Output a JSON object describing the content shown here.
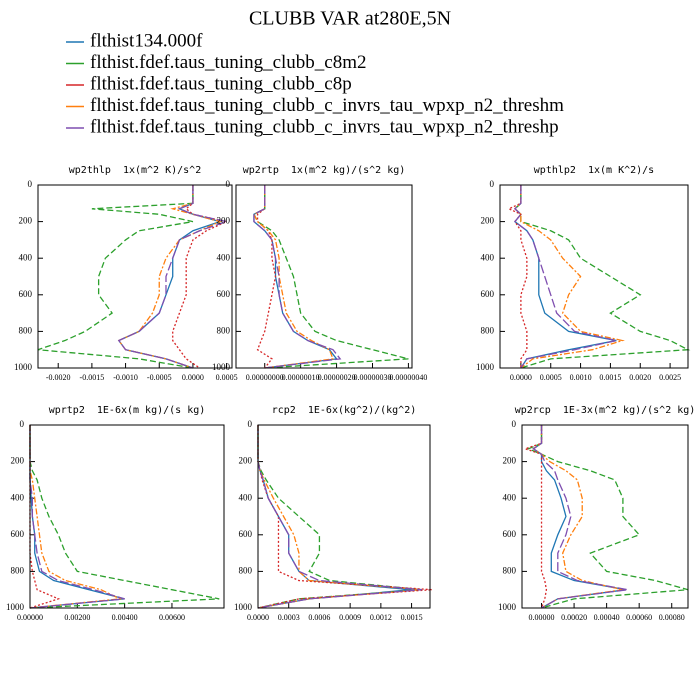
{
  "title": "CLUBB VAR at280E,5N",
  "legend": [
    {
      "name": "flthist134.000f",
      "color": "#1f77b4",
      "dash": "solid"
    },
    {
      "name": "flthist.fdef.taus_tuning_clubb_c8m2",
      "color": "#2ca02c",
      "dash": "dashed"
    },
    {
      "name": "flthist.fdef.taus_tuning_clubb_c8p",
      "color": "#d62728",
      "dash": "dotted"
    },
    {
      "name": "flthist.fdef.taus_tuning_clubb_c_invrs_tau_wpxp_n2_threshm",
      "color": "#ff7f0e",
      "dash": "dashdot"
    },
    {
      "name": "flthist.fdef.taus_tuning_clubb_c_invrs_tau_wpxp_n2_threshp",
      "color": "#7f4fb0",
      "dash": "longdash"
    }
  ],
  "chart_data": [
    {
      "type": "line",
      "title": "wp2thlp  1x(m^2 K)/s^2",
      "y": [
        0,
        100,
        130,
        160,
        200,
        250,
        300,
        400,
        500,
        600,
        700,
        800,
        850,
        900,
        950,
        1000
      ],
      "ylim": [
        1000,
        0
      ],
      "yticks": [
        0,
        200,
        400,
        600,
        800,
        1000
      ],
      "xlim": [
        -0.0023,
        0.00058
      ],
      "xticks": [
        {
          "value": -0.002,
          "label": "-0.0020"
        },
        {
          "value": -0.0015,
          "label": "-0.0015"
        },
        {
          "value": -0.001,
          "label": "-0.0010"
        },
        {
          "value": -0.0005,
          "label": "-0.0005"
        },
        {
          "value": 0,
          "label": "0.0000"
        },
        {
          "value": 0.0005,
          "label": "0.0005"
        }
      ],
      "series": [
        {
          "values": [
            0,
            0,
            -0.0002,
            0,
            0.0004,
            0,
            -0.0002,
            -0.0003,
            -0.0003,
            -0.0004,
            -0.0005,
            -0.0008,
            -0.0011,
            -0.001,
            -0.0004,
            0
          ]
        },
        {
          "values": [
            0,
            0,
            -0.0015,
            -0.0005,
            0,
            -0.0008,
            -0.001,
            -0.0013,
            -0.0014,
            -0.0014,
            -0.0012,
            -0.0016,
            -0.0019,
            -0.0023,
            -0.0008,
            0
          ]
        },
        {
          "values": [
            0,
            0,
            -0.0001,
            0,
            0.0005,
            0.0002,
            0,
            -0.0001,
            -0.0001,
            -0.0001,
            -0.0002,
            -0.0003,
            -0.0003,
            -0.0002,
            -0.0001,
            0.0001
          ]
        },
        {
          "values": [
            0,
            0,
            -0.0003,
            0,
            0.0004,
            0.0001,
            -0.0002,
            -0.0004,
            -0.0005,
            -0.0005,
            -0.0006,
            -0.0008,
            -0.0011,
            -0.001,
            -0.0004,
            0
          ]
        },
        {
          "values": [
            0,
            0,
            -0.0002,
            0,
            0.0005,
            0.0001,
            -0.0002,
            -0.0003,
            -0.0004,
            -0.0004,
            -0.0005,
            -0.0008,
            -0.0011,
            -0.001,
            -0.0004,
            0
          ]
        }
      ]
    },
    {
      "type": "line",
      "title": "wp2rtp  1x(m^2 kg)/(s^2 kg)",
      "y": [
        0,
        100,
        130,
        160,
        200,
        250,
        300,
        400,
        500,
        600,
        700,
        800,
        850,
        900,
        950,
        1000
      ],
      "ylim": [
        1000,
        0
      ],
      "yticks": [
        0,
        200,
        400,
        600,
        800,
        1000
      ],
      "xlim": [
        -8e-08,
        4.1e-07
      ],
      "xticks": [
        {
          "value": 0,
          "label": "0.00000000"
        },
        {
          "value": 1e-07,
          "label": "0.00000010"
        },
        {
          "value": 2e-07,
          "label": "0.00000020"
        },
        {
          "value": 3e-07,
          "label": "0.00000030"
        },
        {
          "value": 4e-07,
          "label": "0.00000040"
        }
      ],
      "series": [
        {
          "values": [
            0,
            0,
            0,
            -3e-08,
            -3e-08,
            0,
            2e-08,
            3e-08,
            3e-08,
            4e-08,
            5e-08,
            8e-08,
            1.2e-07,
            1.8e-07,
            2e-07,
            0
          ]
        },
        {
          "values": [
            0,
            0,
            0,
            -3e-08,
            -2e-08,
            2e-08,
            4e-08,
            6e-08,
            8e-08,
            9e-08,
            1e-07,
            1.4e-07,
            2e-07,
            3e-07,
            4e-07,
            0
          ]
        },
        {
          "values": [
            0,
            0,
            0,
            -2e-08,
            -2e-08,
            1e-08,
            2e-08,
            2e-08,
            3e-08,
            2e-08,
            1e-08,
            0,
            -1e-08,
            -2e-08,
            2e-08,
            0
          ]
        },
        {
          "values": [
            0,
            0,
            0,
            -3e-08,
            -2e-08,
            1e-08,
            3e-08,
            4e-08,
            4e-08,
            5e-08,
            6e-08,
            9e-08,
            1.3e-07,
            1.8e-07,
            1.9e-07,
            0
          ]
        },
        {
          "values": [
            0,
            0,
            0,
            -3e-08,
            -3e-08,
            0,
            2e-08,
            3e-08,
            4e-08,
            4e-08,
            5e-08,
            8e-08,
            1.2e-07,
            1.9e-07,
            2.1e-07,
            0
          ]
        }
      ]
    },
    {
      "type": "line",
      "title": "wpthlp2  1x(m K^2)/s",
      "y": [
        0,
        100,
        130,
        160,
        200,
        250,
        300,
        400,
        500,
        600,
        700,
        800,
        850,
        900,
        950,
        1000
      ],
      "ylim": [
        1000,
        0
      ],
      "yticks": [
        0,
        200,
        400,
        600,
        800,
        1000
      ],
      "xlim": [
        -0.00035,
        0.0028
      ],
      "xticks": [
        {
          "value": 0,
          "label": "0.0000"
        },
        {
          "value": 0.0005,
          "label": "0.0005"
        },
        {
          "value": 0.001,
          "label": "0.0010"
        },
        {
          "value": 0.0015,
          "label": "0.0015"
        },
        {
          "value": 0.002,
          "label": "0.0020"
        },
        {
          "value": 0.0025,
          "label": "0.0025"
        }
      ],
      "series": [
        {
          "values": [
            0,
            0,
            -0.0001,
            0,
            -0.0001,
            0.0001,
            0.0002,
            0.0003,
            0.0003,
            0.0003,
            0.0004,
            0.0008,
            0.0016,
            0.0008,
            0.0001,
            0
          ]
        },
        {
          "values": [
            0,
            0,
            -0.0001,
            0,
            0,
            0.0005,
            0.0008,
            0.001,
            0.0015,
            0.002,
            0.0015,
            0.002,
            0.0025,
            0.0028,
            0.0005,
            0
          ]
        },
        {
          "values": [
            0,
            0,
            -0.0002,
            0,
            -0.0001,
            0,
            0,
            0.0001,
            0.0001,
            0,
            0,
            0.0001,
            0.0001,
            0.0001,
            0,
            0
          ]
        },
        {
          "values": [
            0,
            0,
            -0.0001,
            0,
            0,
            0.0003,
            0.0005,
            0.0007,
            0.001,
            0.0008,
            0.0007,
            0.001,
            0.0017,
            0.0012,
            0.0002,
            0
          ]
        },
        {
          "values": [
            0,
            0,
            -0.0001,
            0,
            -0.0001,
            0.0001,
            0.0002,
            0.0003,
            0.0004,
            0.0005,
            0.0006,
            0.0009,
            0.0016,
            0.0009,
            0.0001,
            0
          ]
        }
      ]
    },
    {
      "type": "line",
      "title": "wprtp2  1E-6x(m kg)/(s kg)",
      "y": [
        0,
        100,
        130,
        160,
        200,
        250,
        300,
        400,
        500,
        600,
        700,
        800,
        850,
        900,
        950,
        1000
      ],
      "ylim": [
        1000,
        0
      ],
      "yticks": [
        0,
        200,
        400,
        600,
        800,
        1000
      ],
      "xlim": [
        0,
        0.0082
      ],
      "xticks": [
        {
          "value": 0,
          "label": "0.00000"
        },
        {
          "value": 0.002,
          "label": "0.00200"
        },
        {
          "value": 0.004,
          "label": "0.00400"
        },
        {
          "value": 0.006,
          "label": "0.00600"
        }
      ],
      "series": [
        {
          "values": [
            0,
            0,
            0,
            0,
            0,
            0,
            0,
            5e-05,
            0.0001,
            0.0002,
            0.0002,
            0.0004,
            0.001,
            0.0025,
            0.004,
            0
          ]
        },
        {
          "values": [
            0,
            0,
            0,
            0,
            0,
            0.0001,
            0.0003,
            0.0005,
            0.0008,
            0.0012,
            0.0015,
            0.002,
            0.004,
            0.006,
            0.008,
            0
          ]
        },
        {
          "values": [
            0,
            0,
            0,
            0,
            0,
            0,
            0,
            0,
            0,
            0,
            0,
            0.0001,
            0.0002,
            0.0003,
            0.0012,
            0
          ]
        },
        {
          "values": [
            0,
            0,
            0,
            0,
            0,
            0,
            0.0001,
            0.0002,
            0.0003,
            0.0004,
            0.0005,
            0.0008,
            0.0015,
            0.003,
            0.0038,
            0
          ]
        },
        {
          "values": [
            0,
            0,
            0,
            0,
            0,
            0,
            0,
            0.0001,
            0.0001,
            0.0002,
            0.0003,
            0.0005,
            0.0012,
            0.0027,
            0.004,
            0
          ]
        }
      ]
    },
    {
      "type": "line",
      "title": "rcp2  1E-6x(kg^2)/(kg^2)",
      "y": [
        0,
        100,
        130,
        160,
        200,
        250,
        300,
        400,
        500,
        600,
        700,
        800,
        850,
        900,
        950,
        1000
      ],
      "ylim": [
        1000,
        0
      ],
      "yticks": [
        0,
        200,
        400,
        600,
        800,
        1000
      ],
      "xlim": [
        0,
        0.00168
      ],
      "xticks": [
        {
          "value": 0,
          "label": "0.0000"
        },
        {
          "value": 0.0003,
          "label": "0.0003"
        },
        {
          "value": 0.0006,
          "label": "0.0006"
        },
        {
          "value": 0.0009,
          "label": "0.0009"
        },
        {
          "value": 0.0012,
          "label": "0.0012"
        },
        {
          "value": 0.0015,
          "label": "0.0015"
        }
      ],
      "series": [
        {
          "values": [
            0,
            0,
            0,
            0,
            0,
            2e-05,
            5e-05,
            0.0001,
            0.0002,
            0.0003,
            0.0003,
            0.0004,
            0.0005,
            0.0015,
            0.0005,
            0
          ]
        },
        {
          "values": [
            0,
            0,
            0,
            0,
            0,
            3e-05,
            8e-05,
            0.0002,
            0.0004,
            0.0006,
            0.0006,
            0.0005,
            0.0007,
            0.0016,
            0.0004,
            0
          ]
        },
        {
          "values": [
            0,
            0,
            0,
            0,
            0,
            2e-05,
            4e-05,
            0.0001,
            0.0002,
            0.0002,
            0.0002,
            0.0002,
            0.0004,
            0.0017,
            0.0004,
            0
          ]
        },
        {
          "values": [
            0,
            0,
            0,
            0,
            0,
            2e-05,
            6e-05,
            0.00015,
            0.00025,
            0.00035,
            0.0004,
            0.0004,
            0.0005,
            0.0016,
            0.0005,
            0
          ]
        },
        {
          "values": [
            0,
            0,
            0,
            0,
            0,
            2e-05,
            5e-05,
            0.0001,
            0.0002,
            0.0003,
            0.0003,
            0.0004,
            0.0006,
            0.0016,
            0.0005,
            0
          ]
        }
      ]
    },
    {
      "type": "line",
      "title": "wp2rcp  1E-3x(m^2 kg)/(s^2 kg)",
      "y": [
        0,
        100,
        130,
        160,
        200,
        250,
        300,
        400,
        500,
        600,
        700,
        800,
        850,
        900,
        950,
        1000
      ],
      "ylim": [
        1000,
        0
      ],
      "yticks": [
        0,
        200,
        400,
        600,
        800,
        1000
      ],
      "xlim": [
        -0.00012,
        0.0009
      ],
      "xticks": [
        {
          "value": 0,
          "label": "0.00000"
        },
        {
          "value": 0.0002,
          "label": "0.00020"
        },
        {
          "value": 0.0004,
          "label": "0.00040"
        },
        {
          "value": 0.0006,
          "label": "0.00060"
        },
        {
          "value": 0.0008,
          "label": "0.00080"
        }
      ],
      "series": [
        {
          "values": [
            0,
            0,
            -5e-05,
            0,
            0,
            3e-05,
            8e-05,
            0.00012,
            0.00015,
            0.0001,
            6e-05,
            6e-05,
            0.0002,
            0.00052,
            0.0001,
            0
          ]
        },
        {
          "values": [
            0,
            0,
            -8e-05,
            0,
            0.0001,
            0.0003,
            0.00045,
            0.0005,
            0.0005,
            0.0006,
            0.0003,
            0.0004,
            0.0007,
            0.0009,
            0.0002,
            0
          ]
        },
        {
          "values": [
            0,
            0,
            -0.0001,
            0,
            0,
            0,
            0,
            0,
            0,
            0,
            0,
            0,
            2e-05,
            3e-05,
            2e-05,
            0
          ]
        },
        {
          "values": [
            0,
            0,
            -5e-05,
            0,
            5e-05,
            0.00015,
            0.00022,
            0.00025,
            0.00025,
            0.00018,
            0.00013,
            0.00015,
            0.00025,
            0.0005,
            0.0001,
            0
          ]
        },
        {
          "values": [
            0,
            0,
            -5e-05,
            0,
            2e-05,
            8e-05,
            0.0001,
            0.00015,
            0.00018,
            0.00015,
            0.0001,
            0.0001,
            0.00022,
            0.00053,
            0.0001,
            0
          ]
        }
      ]
    }
  ]
}
